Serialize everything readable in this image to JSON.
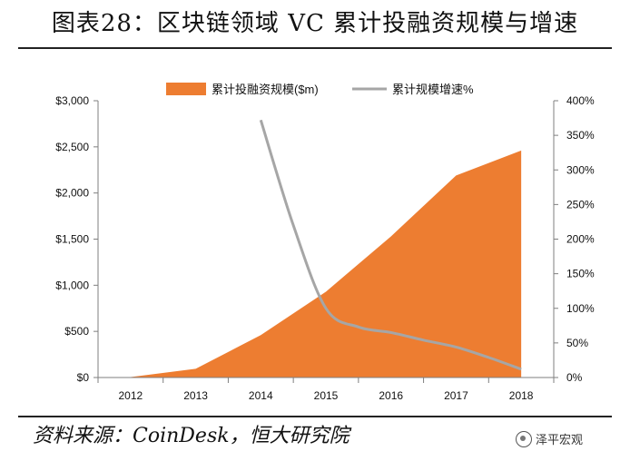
{
  "title": "图表28：区块链领域 VC 累计投融资规模与增速",
  "source": "资料来源：CoinDesk，恒大研究院",
  "watermark": "泽平宏观",
  "chart_data": {
    "type": "area+line",
    "categories": [
      "2012",
      "2013",
      "2014",
      "2015",
      "2016",
      "2017",
      "2018"
    ],
    "series": [
      {
        "name": "累计投融资规模($m)",
        "type": "area",
        "axis": "left",
        "color": "#ed7d31",
        "values": [
          5,
          95,
          460,
          930,
          1530,
          2190,
          2460
        ]
      },
      {
        "name": "累计规模增速%",
        "type": "line",
        "axis": "right",
        "color": "#a6a6a6",
        "points": [
          {
            "x": "2014",
            "y": 372
          },
          {
            "x": "2014.5",
            "y": 220
          },
          {
            "x": "2015",
            "y": 100
          },
          {
            "x": "2015.5",
            "y": 73
          },
          {
            "x": "2016",
            "y": 65
          },
          {
            "x": "2016.5",
            "y": 54
          },
          {
            "x": "2017",
            "y": 44
          },
          {
            "x": "2017.5",
            "y": 29
          },
          {
            "x": "2018",
            "y": 12
          }
        ]
      }
    ],
    "left_axis": {
      "ylim": [
        0,
        3000
      ],
      "ticks": [
        0,
        500,
        1000,
        1500,
        2000,
        2500,
        3000
      ],
      "tick_labels": [
        "$0",
        "$500",
        "$1,000",
        "$1,500",
        "$2,000",
        "$2,500",
        "$3,000"
      ]
    },
    "right_axis": {
      "ylim": [
        0,
        400
      ],
      "ticks": [
        0,
        50,
        100,
        150,
        200,
        250,
        300,
        350,
        400
      ],
      "tick_labels": [
        "0%",
        "50%",
        "100%",
        "150%",
        "200%",
        "250%",
        "300%",
        "350%",
        "400%"
      ]
    },
    "grid": false,
    "legend_position": "top"
  }
}
